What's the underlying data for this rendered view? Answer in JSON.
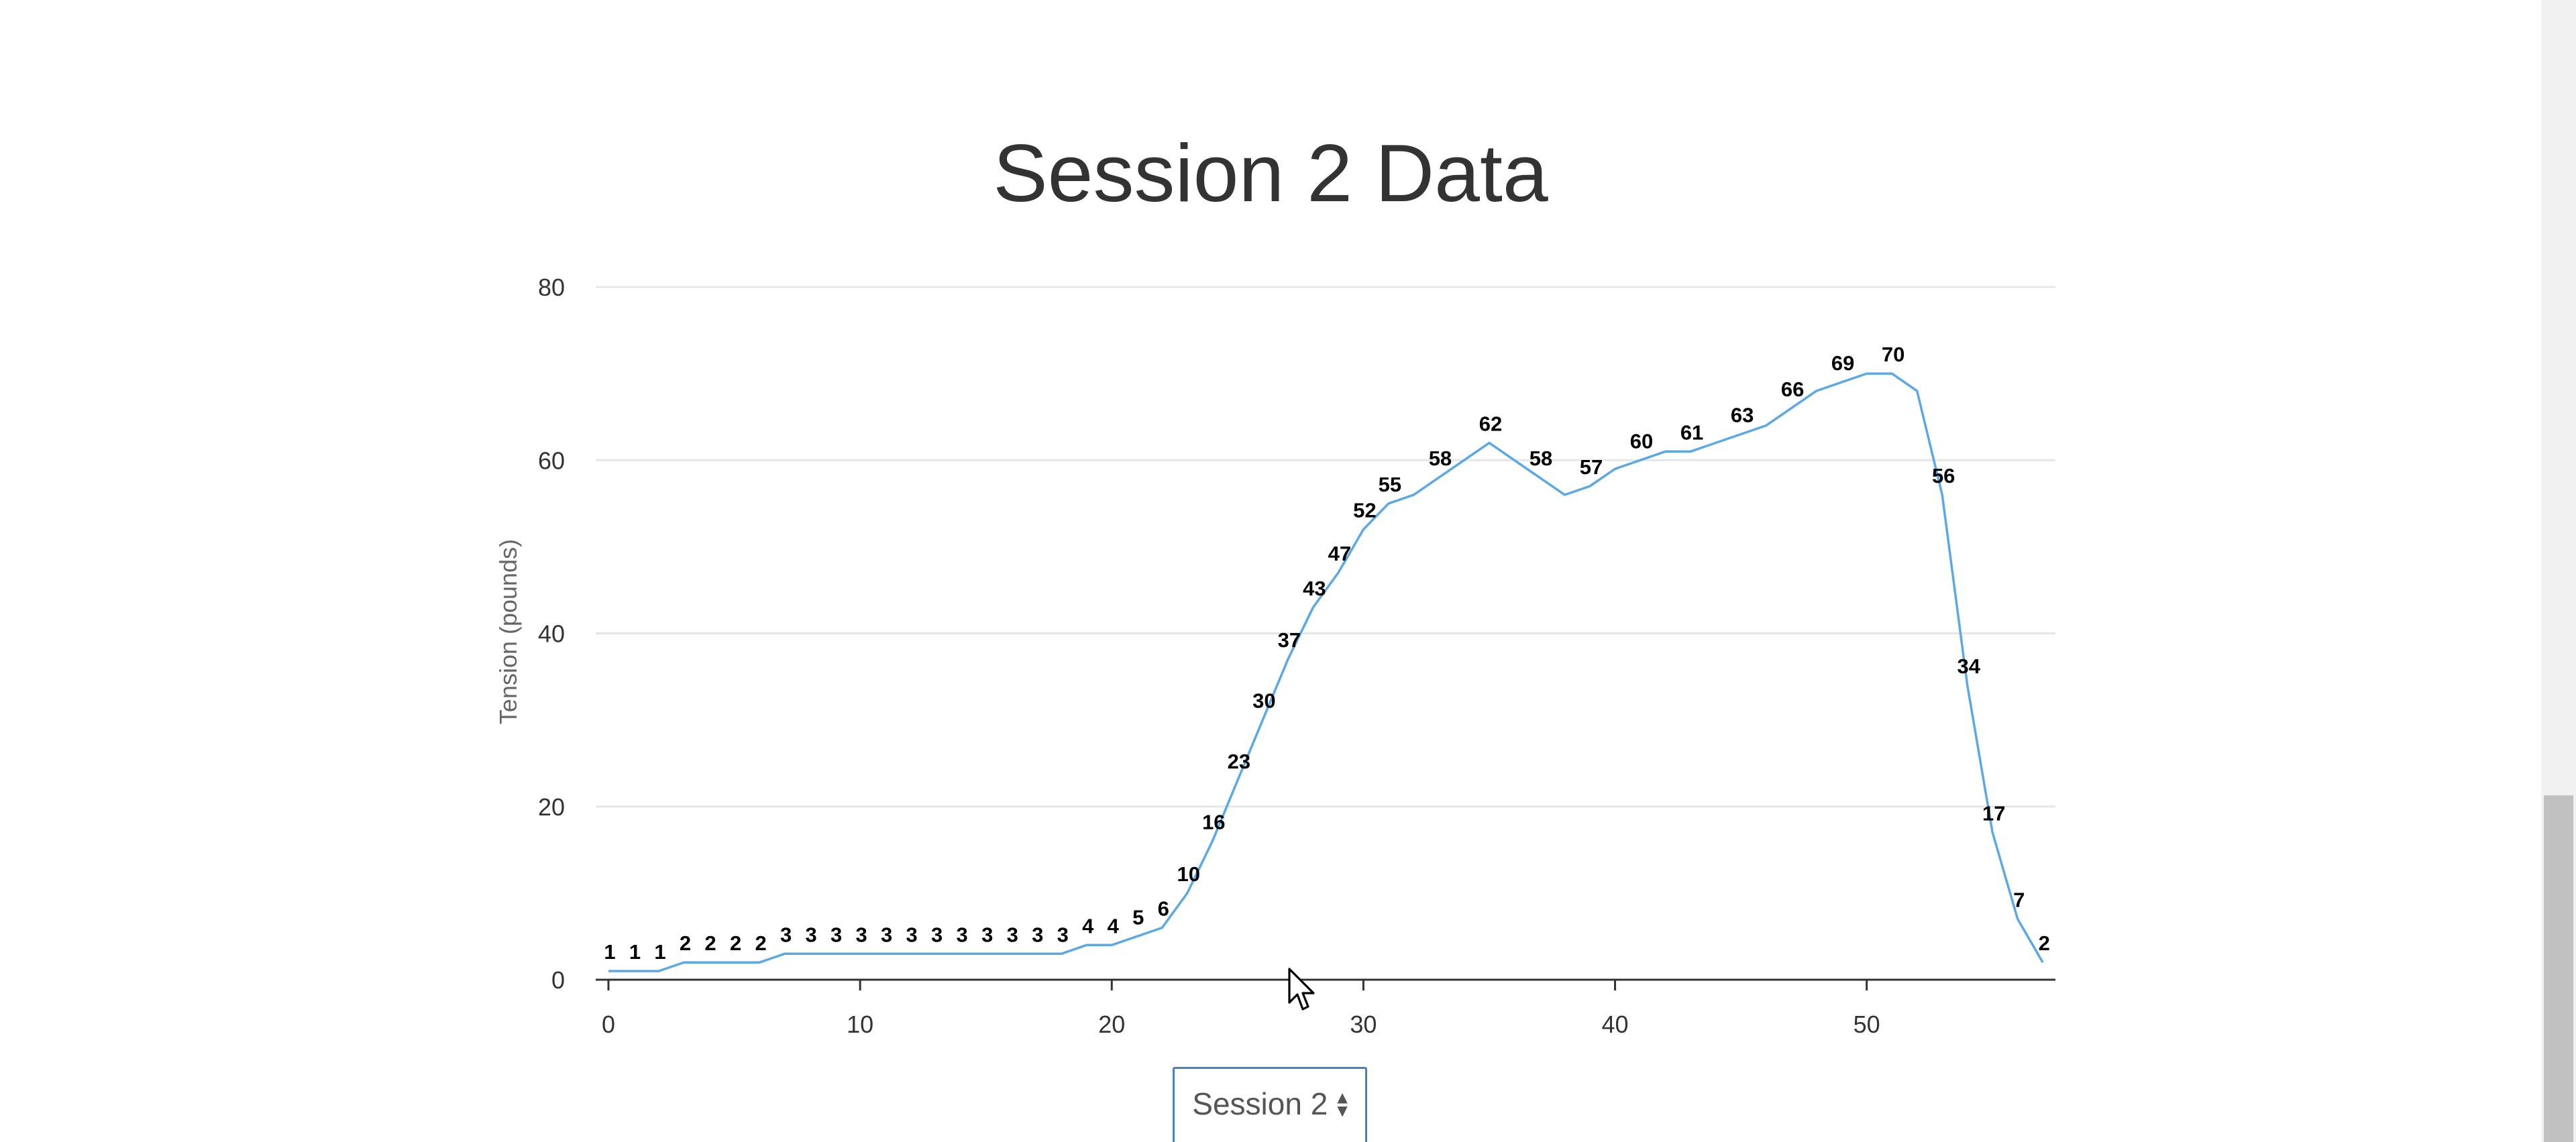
{
  "chart_data": {
    "type": "line",
    "title": "Session 2 Data",
    "ylabel": "Tension (pounds)",
    "xlabel": "",
    "xlim": [
      0,
      57.5
    ],
    "ylim": [
      0,
      80
    ],
    "x_ticks": [
      0,
      10,
      20,
      30,
      40,
      50
    ],
    "y_ticks": [
      0,
      20,
      40,
      60,
      80
    ],
    "grid": "horizontal",
    "legend": "none",
    "line_color": "#5aa9e6",
    "x": [
      0,
      1,
      2,
      3,
      4,
      5,
      6,
      7,
      8,
      9,
      10,
      11,
      12,
      13,
      14,
      15,
      16,
      17,
      18,
      19,
      20,
      21,
      22,
      23,
      24,
      25,
      26,
      27,
      28,
      29,
      30,
      31,
      32,
      33,
      34,
      35,
      36,
      37,
      38,
      39,
      40,
      41,
      42,
      43,
      44,
      45,
      46,
      47,
      48,
      49,
      50,
      51,
      52,
      53,
      54,
      55,
      56,
      57
    ],
    "values": [
      1,
      1,
      1,
      2,
      2,
      2,
      2,
      3,
      3,
      3,
      3,
      3,
      3,
      3,
      3,
      3,
      3,
      3,
      3,
      4,
      4,
      5,
      6,
      10,
      16,
      23,
      30,
      37,
      43,
      47,
      52,
      55,
      56,
      58,
      60,
      62,
      60,
      58,
      56,
      57,
      59,
      60,
      61,
      61,
      62,
      63,
      64,
      66,
      68,
      69,
      70,
      70,
      68,
      56,
      34,
      17,
      7,
      2
    ],
    "data_labels": [
      {
        "x": 0,
        "text": "1"
      },
      {
        "x": 1,
        "text": "1"
      },
      {
        "x": 2,
        "text": "1"
      },
      {
        "x": 3,
        "text": "2"
      },
      {
        "x": 4,
        "text": "2"
      },
      {
        "x": 5,
        "text": "2"
      },
      {
        "x": 6,
        "text": "2"
      },
      {
        "x": 7,
        "text": "3"
      },
      {
        "x": 8,
        "text": "3"
      },
      {
        "x": 9,
        "text": "3"
      },
      {
        "x": 10,
        "text": "3"
      },
      {
        "x": 11,
        "text": "3"
      },
      {
        "x": 12,
        "text": "3"
      },
      {
        "x": 13,
        "text": "3"
      },
      {
        "x": 14,
        "text": "3"
      },
      {
        "x": 15,
        "text": "3"
      },
      {
        "x": 16,
        "text": "3"
      },
      {
        "x": 17,
        "text": "3"
      },
      {
        "x": 18,
        "text": "3"
      },
      {
        "x": 19,
        "text": "4"
      },
      {
        "x": 20,
        "text": "4"
      },
      {
        "x": 21,
        "text": "5"
      },
      {
        "x": 22,
        "text": "6"
      },
      {
        "x": 23,
        "text": "10"
      },
      {
        "x": 24,
        "text": "16"
      },
      {
        "x": 25,
        "text": "23"
      },
      {
        "x": 26,
        "text": "30"
      },
      {
        "x": 27,
        "text": "37"
      },
      {
        "x": 28,
        "text": "43"
      },
      {
        "x": 29,
        "text": "47"
      },
      {
        "x": 30,
        "text": "52"
      },
      {
        "x": 31,
        "text": "55"
      },
      {
        "x": 33,
        "text": "58"
      },
      {
        "x": 35,
        "text": "62"
      },
      {
        "x": 37,
        "text": "58"
      },
      {
        "x": 39,
        "text": "57"
      },
      {
        "x": 41,
        "text": "60"
      },
      {
        "x": 43,
        "text": "61"
      },
      {
        "x": 45,
        "text": "63"
      },
      {
        "x": 47,
        "text": "66"
      },
      {
        "x": 49,
        "text": "69"
      },
      {
        "x": 51,
        "text": "70"
      },
      {
        "x": 53,
        "text": "56"
      },
      {
        "x": 54,
        "text": "34"
      },
      {
        "x": 55,
        "text": "17"
      },
      {
        "x": 56,
        "text": "7"
      },
      {
        "x": 57,
        "text": "2"
      }
    ]
  },
  "session_select": {
    "selected": "Session 2",
    "arrow_up": "▲",
    "arrow_down": "▼"
  },
  "colors": {
    "grid": "#e6e6e6",
    "axis": "#333333",
    "select_border": "#4a7fc9"
  },
  "icons": {
    "cursor": "mouse-pointer-icon"
  }
}
